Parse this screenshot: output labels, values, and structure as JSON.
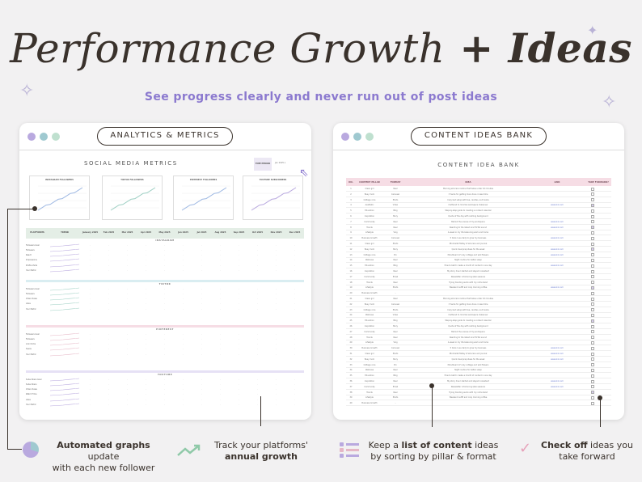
{
  "hero": {
    "title_part1": "Performance Growth",
    "title_part2": " + Ideas",
    "subtitle": "See progress clearly and never run out of post ideas"
  },
  "analytics_window": {
    "pill_label": "ANALYTICS & METRICS",
    "sheet_title": "SOCIAL MEDIA METRICS",
    "period_label": "TIME PERIOD",
    "mini_charts": [
      {
        "label": "INSTAGRAM FOLLOWERS"
      },
      {
        "label": "TIKTOK FOLLOWERS"
      },
      {
        "label": "PINTEREST FOLLOWERS"
      },
      {
        "label": "YOUTUBE SUBSCRIBERS"
      }
    ],
    "table_headers": [
      "PLATFORMS",
      "TREND",
      "January 2025",
      "Feb 2025",
      "Mar 2025",
      "Apr 2025",
      "May 2025",
      "Jun 2025",
      "Jul 2025",
      "Aug 2025",
      "Sep 2025",
      "Oct 2025",
      "Nov 2025",
      "Dec 2025"
    ],
    "sections": [
      {
        "name": "INSTAGRAM",
        "rows": [
          "Followers Goal",
          "Followers",
          "Reach",
          "Impressions",
          "Profile Visits",
          "Your Metric"
        ]
      },
      {
        "name": "TIKTOK",
        "rows": [
          "Followers Goal",
          "Followers",
          "Video Views",
          "Likes",
          "Your Metric"
        ]
      },
      {
        "name": "PINTEREST",
        "rows": [
          "Followers Goal",
          "Followers",
          "Link Clicks",
          "Saves",
          "Your Metric"
        ]
      },
      {
        "name": "YOUTUBE",
        "rows": [
          "Subscribers Goal",
          "Subscribers",
          "Video Views",
          "Watch Time",
          "Likes",
          "Your Metric"
        ]
      }
    ]
  },
  "ideas_window": {
    "pill_label": "CONTENT IDEAS BANK",
    "sheet_title": "CONTENT IDEA BANK",
    "headers": [
      "NO.",
      "CONTENT PILLAR",
      "FORMAT",
      "IDEA",
      "LINK",
      "TAKE FORWARD?"
    ],
    "rows": [
      {
        "pillar": "Clean girl",
        "format": "Reel",
        "idea": "Morning skincare routine that takes under 10 minutes",
        "link": "",
        "checked": false
      },
      {
        "pillar": "Busy mom",
        "format": "Carousel",
        "idea": "3 hacks for getting more done in less time",
        "link": "",
        "checked": false
      },
      {
        "pillar": "Cottage core",
        "format": "Photo",
        "idea": "Cozy bed setup with tea, candles, and books",
        "link": "",
        "checked": false
      },
      {
        "pillar": "Aesthetic",
        "format": "Video",
        "idea": "Cluttered to minimal workspace makeover",
        "link": "www.link.com",
        "checked": true
      },
      {
        "pillar": "Education",
        "format": "Blog",
        "idea": "Step-by-step guide to creating a content calendar",
        "link": "",
        "checked": false
      },
      {
        "pillar": "Inspiration",
        "format": "Story",
        "idea": "Quote of the day with calming background",
        "link": "",
        "checked": false
      },
      {
        "pillar": "Community",
        "format": "Reel",
        "idea": "Behind the scenes of my workspace",
        "link": "www.link.com",
        "checked": false
      },
      {
        "pillar": "Trends",
        "format": "Reel",
        "idea": "Reacting to the latest viral TikTok sound",
        "link": "www.link.com",
        "checked": true
      },
      {
        "pillar": "Lifestyle",
        "format": "Vlog",
        "idea": "A week in my life balancing work and home",
        "link": "",
        "checked": false
      },
      {
        "pillar": "Business Growth",
        "format": "Carousel",
        "idea": "5 tools I use daily to grow my business",
        "link": "www.link.com",
        "checked": false
      },
      {
        "pillar": "Clean girl",
        "format": "Photo",
        "idea": "Minimalist flatlay of skincare and journal",
        "link": "",
        "checked": false
      },
      {
        "pillar": "Busy mom",
        "format": "Story",
        "idea": "Quick meal prep ideas for the week",
        "link": "www.link.com",
        "checked": true
      },
      {
        "pillar": "Cottage core",
        "format": "Pin",
        "idea": "Moodboard of cozy cottage and wild flowers",
        "link": "www.link.com",
        "checked": false
      },
      {
        "pillar": "Wellness",
        "format": "Reel",
        "idea": "Night routine for better sleep",
        "link": "",
        "checked": false
      },
      {
        "pillar": "Education",
        "format": "Blog",
        "idea": "How to batch create a month of content in one day",
        "link": "www.link.com",
        "checked": false
      },
      {
        "pillar": "Inspiration",
        "format": "Reel",
        "idea": "My story how I started and stayed consistent",
        "link": "",
        "checked": false
      },
      {
        "pillar": "Community",
        "format": "Email",
        "idea": "Newsletter introducing Q&A sessions",
        "link": "",
        "checked": false
      },
      {
        "pillar": "Trends",
        "format": "Reel",
        "idea": "Trying trending audio with my niche twist",
        "link": "",
        "checked": false
      },
      {
        "pillar": "Lifestyle",
        "format": "Photo",
        "idea": "Weekend outfit and cozy morning coffee",
        "link": "www.link.com",
        "checked": true
      },
      {
        "pillar": "Business Growth",
        "format": "-",
        "idea": "",
        "link": "",
        "checked": false
      },
      {
        "pillar": "Clean girl",
        "format": "Reel",
        "idea": "Morning skincare routine that takes under 10 minutes",
        "link": "",
        "checked": false
      },
      {
        "pillar": "Busy mom",
        "format": "Carousel",
        "idea": "3 hacks for getting more done in less time",
        "link": "",
        "checked": false
      },
      {
        "pillar": "Cottage core",
        "format": "Photo",
        "idea": "Cozy bed setup with tea, candles, and books",
        "link": "",
        "checked": false
      },
      {
        "pillar": "Wellness",
        "format": "Video",
        "idea": "Cluttered to minimal workspace makeover",
        "link": "",
        "checked": false
      },
      {
        "pillar": "Education",
        "format": "Blog",
        "idea": "Step-by-step guide to creating a content calendar",
        "link": "",
        "checked": true
      },
      {
        "pillar": "Inspiration",
        "format": "Story",
        "idea": "Quote of the day with calming background",
        "link": "",
        "checked": false
      },
      {
        "pillar": "Community",
        "format": "Reel",
        "idea": "Behind the scenes of my workspace",
        "link": "",
        "checked": false
      },
      {
        "pillar": "Trends",
        "format": "Reel",
        "idea": "Reacting to the latest viral TikTok sound",
        "link": "",
        "checked": false
      },
      {
        "pillar": "Lifestyle",
        "format": "Vlog",
        "idea": "A week in my life balancing work and home",
        "link": "",
        "checked": false
      },
      {
        "pillar": "Business Growth",
        "format": "Carousel",
        "idea": "5 tools I use daily to grow my business",
        "link": "www.link.com",
        "checked": false
      },
      {
        "pillar": "Clean girl",
        "format": "Photo",
        "idea": "Minimalist flatlay of skincare and journal",
        "link": "www.link.com",
        "checked": false
      },
      {
        "pillar": "Busy mom",
        "format": "Story",
        "idea": "Quick meal prep ideas for the week",
        "link": "www.link.com",
        "checked": false
      },
      {
        "pillar": "Cottage core",
        "format": "Pin",
        "idea": "Moodboard of cozy cottage and wild flowers",
        "link": "",
        "checked": false
      },
      {
        "pillar": "Wellness",
        "format": "Reel",
        "idea": "Night routine for better sleep",
        "link": "",
        "checked": false
      },
      {
        "pillar": "Education",
        "format": "Blog",
        "idea": "How to batch create a month of content in one day",
        "link": "",
        "checked": false
      },
      {
        "pillar": "Inspiration",
        "format": "Reel",
        "idea": "My story how I started and stayed consistent",
        "link": "www.link.com",
        "checked": false
      },
      {
        "pillar": "Community",
        "format": "Email",
        "idea": "Newsletter introducing Q&A sessions",
        "link": "www.link.com",
        "checked": false
      },
      {
        "pillar": "Trends",
        "format": "Reel",
        "idea": "Trying trending audio with my niche twist",
        "link": "",
        "checked": true
      },
      {
        "pillar": "Lifestyle",
        "format": "Photo",
        "idea": "Weekend outfit and cozy morning coffee",
        "link": "",
        "checked": false
      },
      {
        "pillar": "Business Growth",
        "format": "-",
        "idea": "",
        "link": "",
        "checked": false
      }
    ]
  },
  "captions": {
    "graphs_bold": "Automated graphs",
    "graphs_rest1": " update",
    "graphs_rest2": "with each new follower",
    "growth_line1": "Track your platforms'",
    "growth_bold": "annual growth",
    "list_pre": "Keep a ",
    "list_bold": "list of content",
    "list_post": " ideas",
    "list_line2": "by sorting by pillar & format",
    "check_bold": "Check off",
    "check_rest": " ideas you",
    "check_line2": "take forward"
  },
  "colors": {
    "accent_purple": "#8b79cf",
    "dot_purple": "#b9a9df",
    "dot_teal": "#9fc9d0",
    "dot_green": "#bfe0cf",
    "instagram": "#e4eee6",
    "tiktok": "#d9edf1",
    "pinterest": "#f6dde5",
    "youtube": "#e6e1f5"
  }
}
